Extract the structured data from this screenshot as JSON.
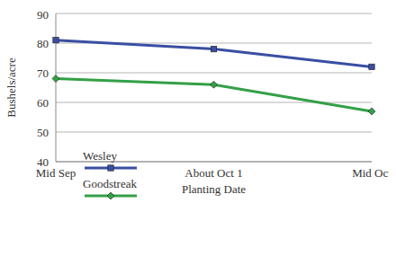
{
  "chart_data": {
    "type": "line",
    "x_label": "Planting Date",
    "y_label": "Bushels/acre",
    "categories": [
      "Mid Sep",
      "About Oct 1",
      "Mid Oct"
    ],
    "series": [
      {
        "name": "Wesley",
        "color": "#3a4fa3",
        "marker": "square",
        "values": [
          81,
          78,
          72
        ]
      },
      {
        "name": "Goodstreak",
        "color": "#33a047",
        "marker": "diamond",
        "values": [
          68,
          66,
          57
        ]
      }
    ],
    "ylim": [
      40,
      90
    ],
    "yticks": [
      40,
      50,
      60,
      70,
      80,
      90
    ],
    "grid": true,
    "legend": "lower left"
  }
}
